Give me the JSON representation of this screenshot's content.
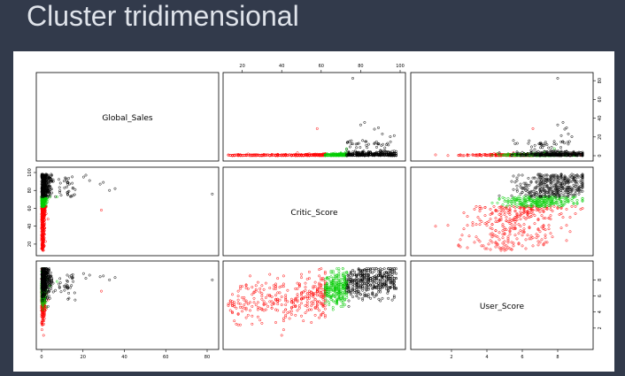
{
  "slide": {
    "title": "Cluster tridimensional"
  },
  "chart_data": {
    "type": "scatter",
    "subtype": "pairs-plot",
    "variables": [
      "Global_Sales",
      "Critic_Score",
      "User_Score"
    ],
    "ranges": {
      "Global_Sales": [
        0,
        83
      ],
      "Critic_Score": [
        13,
        100
      ],
      "User_Score": [
        0,
        9.7
      ]
    },
    "ticks": {
      "Global_Sales": [
        "0",
        "20",
        "40",
        "60",
        "80"
      ],
      "Critic_Score": [
        "20",
        "40",
        "60",
        "80",
        "100"
      ],
      "User_Score": [
        "2",
        "4",
        "6",
        "8"
      ]
    },
    "clusters": [
      {
        "color": "#ff0000",
        "critic_range": [
          13,
          62
        ],
        "user_center": 5.6
      },
      {
        "color": "#00cc00",
        "critic_range": [
          62,
          73
        ],
        "user_center": 6.9
      },
      {
        "color": "#000000",
        "critic_range": [
          73,
          98
        ],
        "user_center": 7.8
      }
    ],
    "outliers": [
      {
        "global_sales": 82.5,
        "critic_score": 76,
        "user_score": 8.0
      },
      {
        "global_sales": 35.5,
        "critic_score": 82,
        "user_score": 8.3
      },
      {
        "global_sales": 32.8,
        "critic_score": 80,
        "user_score": 8.0
      },
      {
        "global_sales": 29.8,
        "critic_score": 89,
        "user_score": 8.5
      },
      {
        "global_sales": 28.9,
        "critic_score": 58,
        "user_score": 6.6
      },
      {
        "global_sales": 28.3,
        "critic_score": 87,
        "user_score": 8.4
      },
      {
        "global_sales": 23.2,
        "critic_score": 91,
        "user_score": 8.6
      },
      {
        "global_sales": 21.4,
        "critic_score": 97,
        "user_score": 8.2
      },
      {
        "global_sales": 20.3,
        "critic_score": 95,
        "user_score": 8.8
      },
      {
        "global_sales": 16.2,
        "critic_score": 81,
        "user_score": 5.5
      }
    ],
    "grid": false,
    "legend": "none"
  }
}
